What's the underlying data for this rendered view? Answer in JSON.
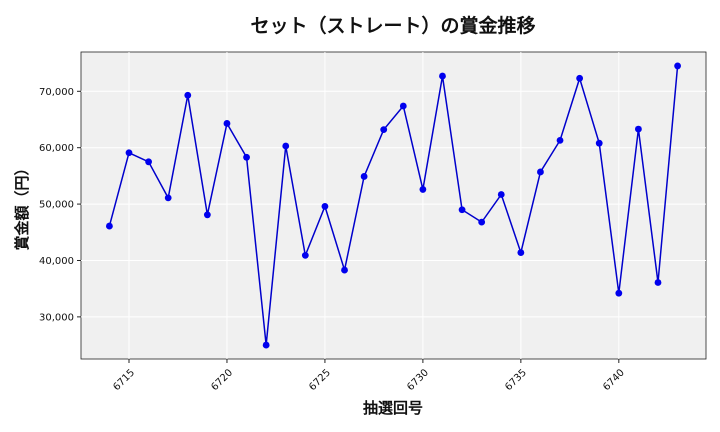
{
  "chart_data": {
    "type": "line",
    "title": "セット（ストレート）の賞金推移",
    "xlabel": "抽選回号",
    "ylabel": "賞金額（円）",
    "x": [
      6714,
      6715,
      6716,
      6717,
      6718,
      6719,
      6720,
      6721,
      6722,
      6723,
      6724,
      6725,
      6726,
      6727,
      6728,
      6729,
      6730,
      6731,
      6732,
      6733,
      6734,
      6735,
      6736,
      6737,
      6738,
      6739,
      6740,
      6741,
      6742,
      6743
    ],
    "series": [
      {
        "values": [
          46100,
          59100,
          57500,
          51100,
          69300,
          48100,
          64300,
          58300,
          25000,
          60300,
          40900,
          49600,
          38300,
          54900,
          63200,
          67400,
          52600,
          72700,
          49000,
          46800,
          51700,
          41400,
          55700,
          61300,
          72300,
          60800,
          34200,
          63300,
          36100,
          74500
        ]
      }
    ],
    "xticks": [
      6715,
      6720,
      6725,
      6730,
      6735,
      6740
    ],
    "xtick_labels": [
      "6715",
      "6720",
      "6725",
      "6730",
      "6735",
      "6740"
    ],
    "yticks": [
      30000,
      40000,
      50000,
      60000,
      70000
    ],
    "ytick_labels": [
      "30,000",
      "40,000",
      "50,000",
      "60,000",
      "70,000"
    ],
    "xlim": [
      6712.55,
      6744.45
    ],
    "ylim": [
      22530,
      76970
    ],
    "grid": true,
    "colors": {
      "line": "#0000cc",
      "marker": "#0000ee",
      "plot_background": "#f0f0f0",
      "grid": "#ffffff"
    }
  }
}
